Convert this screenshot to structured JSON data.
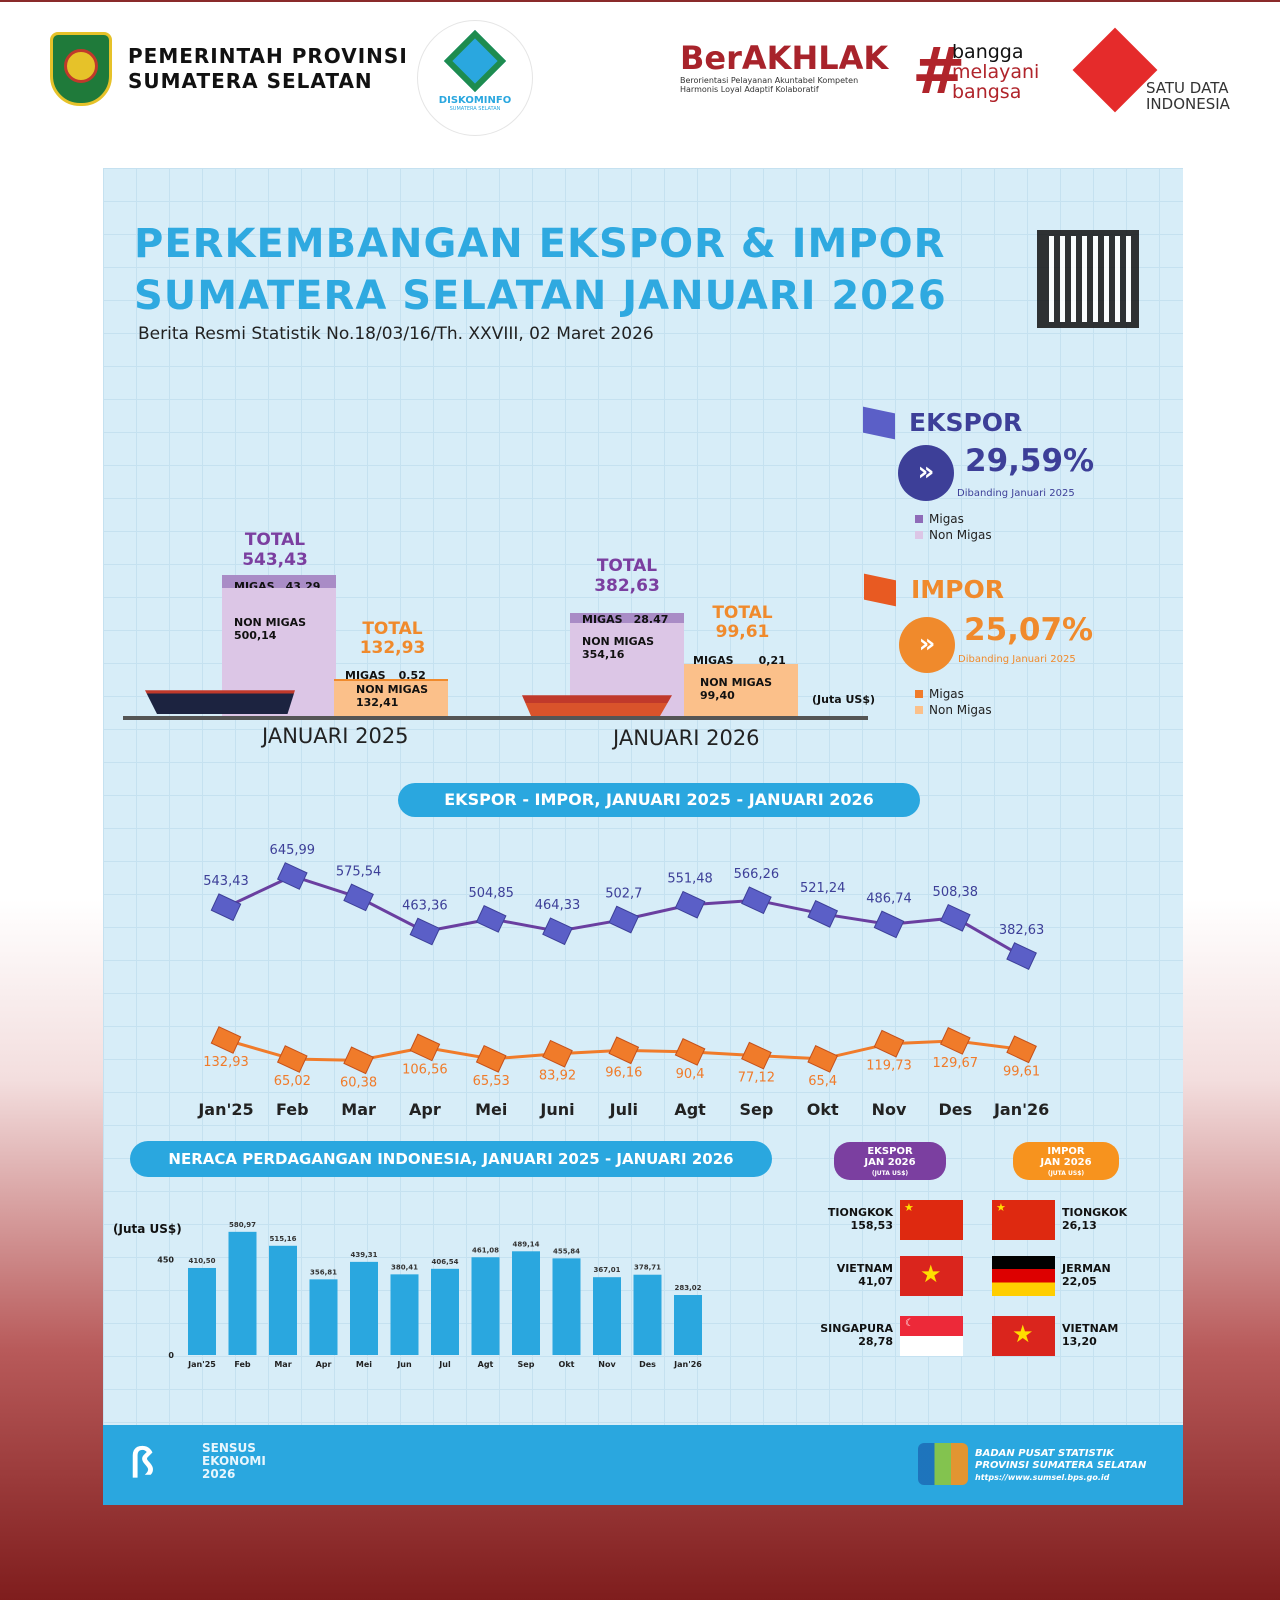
{
  "header": {
    "gov_line1": "PEMERINTAH PROVINSI",
    "gov_line2": "SUMATERA SELATAN",
    "diskominfo": "DISKOMINFO",
    "diskominfo_sub": "SUMATERA SELATAN",
    "berakhlak": "BerAKHLAK",
    "berakhlak_line1": "Berorientasi Pelayanan Akuntabel Kompeten",
    "berakhlak_line2": "Harmonis Loyal Adaptif Kolaboratif",
    "bangga": [
      "bangga",
      "melayani",
      "bangsa"
    ],
    "satu_data1": "SATU DATA",
    "satu_data2": "INDONESIA"
  },
  "poster": {
    "title_line1": "PERKEMBANGAN EKSPOR & IMPOR",
    "title_line2": "SUMATERA SELATAN JANUARI 2026",
    "subtitle": "Berita Resmi Statistik No.18/03/16/Th. XXVIII, 02 Maret 2026"
  },
  "comparison": {
    "unit": "(Juta US$)",
    "periods": [
      {
        "label": "JANUARI 2025",
        "ekspor_total_label": "TOTAL",
        "ekspor_total": "543,43",
        "ekspor_migas": "43,29",
        "ekspor_nonmigas": "500,14",
        "impor_total_label": "TOTAL",
        "impor_total": "132,93",
        "impor_migas": "0,52",
        "impor_nonmigas": "132,41"
      },
      {
        "label": "JANUARI 2026",
        "ekspor_total_label": "TOTAL",
        "ekspor_total": "382,63",
        "ekspor_migas": "28,47",
        "ekspor_nonmigas": "354,16",
        "impor_total_label": "TOTAL",
        "impor_total": "99,61",
        "impor_migas": "0,21",
        "impor_nonmigas": "99,40"
      }
    ],
    "migas_label": "MIGAS",
    "nonmigas_label": "NON MIGAS"
  },
  "summary": {
    "ekspor": {
      "title": "EKSPOR",
      "change": "29,59%",
      "direction": "down",
      "note": "Dibanding Januari 2025",
      "legend": [
        "Migas",
        "Non Migas"
      ],
      "color": "#3d3f98"
    },
    "impor": {
      "title": "IMPOR",
      "change": "25,07%",
      "direction": "down",
      "note": "Dibanding Januari 2025",
      "legend": [
        "Migas",
        "Non Migas"
      ],
      "color": "#f08a2c"
    }
  },
  "chart_data": [
    {
      "type": "line",
      "title": "EKSPOR - IMPOR, JANUARI 2025 -  JANUARI 2026",
      "categories": [
        "Jan'25",
        "Feb",
        "Mar",
        "Apr",
        "Mei",
        "Juni",
        "Juli",
        "Agt",
        "Sep",
        "Okt",
        "Nov",
        "Des",
        "Jan'26"
      ],
      "series": [
        {
          "values": [
            543.43,
            645.99,
            575.54,
            463.36,
            504.85,
            464.33,
            502.7,
            551.48,
            566.26,
            521.24,
            486.74,
            508.38,
            382.63
          ],
          "labels": [
            "543,43",
            "645,99",
            "575,54",
            "463,36",
            "504,85",
            "464,33",
            "502,7",
            "551,48",
            "566,26",
            "521,24",
            "486,74",
            "508,38",
            "382,63"
          ],
          "color": "#6a3fa0"
        },
        {
          "values": [
            132.93,
            65.02,
            60.38,
            106.56,
            65.53,
            83.92,
            96.16,
            90.4,
            77.12,
            65.4,
            119.73,
            129.67,
            99.61
          ],
          "labels": [
            "132,93",
            "65,02",
            "60,38",
            "106,56",
            "65,53",
            "83,92",
            "96,16",
            "90,4",
            "77,12",
            "65,4",
            "119,73",
            "129,67",
            "99,61"
          ],
          "color": "#f07b2a"
        }
      ]
    },
    {
      "type": "bar",
      "title": "NERACA PERDAGANGAN INDONESIA, JANUARI 2025 - JANUARI 2026",
      "ylabel": "(Juta US$)",
      "yticks": [
        "0",
        "450"
      ],
      "ylim": [
        0,
        600
      ],
      "categories": [
        "Jan'25",
        "Feb",
        "Mar",
        "Apr",
        "Mei",
        "Jun",
        "Jul",
        "Agt",
        "Sep",
        "Okt",
        "Nov",
        "Des",
        "Jan'26"
      ],
      "values": [
        410.5,
        580.97,
        515.16,
        356.81,
        439.31,
        380.41,
        406.54,
        461.08,
        489.14,
        455.84,
        367.01,
        378.71,
        283.02
      ],
      "labels": [
        "410,50",
        "580,97",
        "515,16",
        "356,81",
        "439,31",
        "380,41",
        "406,54",
        "461,08",
        "489,14",
        "455,84",
        "367,01",
        "378,71",
        "283,02"
      ],
      "color": "#2aa7df"
    }
  ],
  "partners": {
    "ekspor": {
      "label1": "EKSPOR",
      "label2": "JAN 2026",
      "label3": "(JUTA US$)",
      "items": [
        {
          "country": "TIONGKOK",
          "value": "158,53",
          "flag": "china"
        },
        {
          "country": "VIETNAM",
          "value": "41,07",
          "flag": "vietnam"
        },
        {
          "country": "SINGAPURA",
          "value": "28,78",
          "flag": "singapore"
        }
      ]
    },
    "impor": {
      "label1": "IMPOR",
      "label2": "JAN 2026",
      "label3": "(JUTA US$)",
      "items": [
        {
          "country": "TIONGKOK",
          "value": "26,13",
          "flag": "china"
        },
        {
          "country": "JERMAN",
          "value": "22,05",
          "flag": "germany"
        },
        {
          "country": "VIETNAM",
          "value": "13,20",
          "flag": "vietnam"
        }
      ]
    }
  },
  "footer": {
    "sensus1": "SENSUS",
    "sensus2": "EKONOMI",
    "sensus3": "2026",
    "bps1": "BADAN PUSAT STATISTIK",
    "bps2": "PROVINSI SUMATERA SELATAN",
    "bps3": "https://www.sumsel.bps.go.id"
  }
}
